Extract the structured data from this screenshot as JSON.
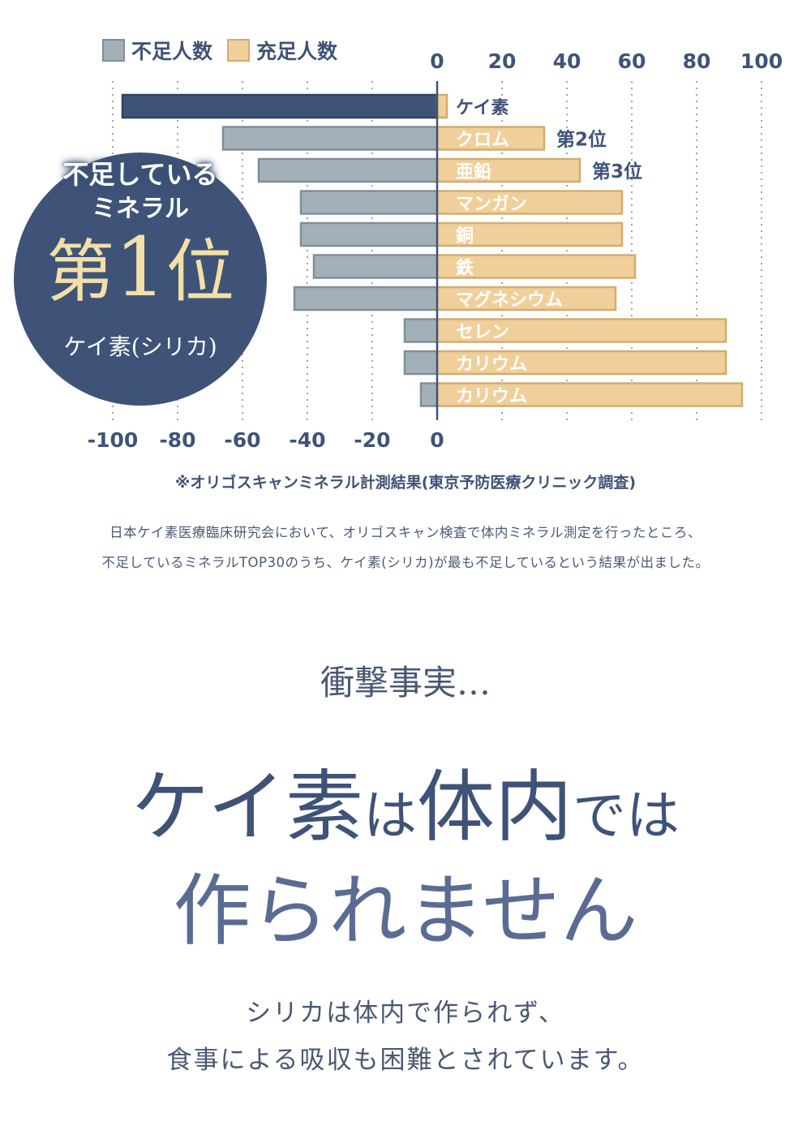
{
  "legend": {
    "shortage_label": "不足人数",
    "sufficient_label": "充足人数",
    "shortage_color": "#a3b0b8",
    "sufficient_color": "#f0cf9b"
  },
  "chart_data": {
    "type": "bar",
    "orientation": "horizontal-diverging",
    "categories": [
      "ケイ素",
      "クロム",
      "亜鉛",
      "マンガン",
      "銅",
      "鉄",
      "マグネシウム",
      "セレン",
      "カリウム",
      "カリウム"
    ],
    "series": [
      {
        "name": "不足人数",
        "values": [
          -97,
          -66,
          -55,
          -42,
          -42,
          -38,
          -44,
          -10,
          -10,
          -5
        ]
      },
      {
        "name": "充足人数",
        "values": [
          3,
          33,
          44,
          57,
          57,
          61,
          55,
          89,
          89,
          94
        ]
      }
    ],
    "rank_annotations": [
      {
        "category_index": 1,
        "text": "第2位"
      },
      {
        "category_index": 2,
        "text": "第3位"
      }
    ],
    "top_axis_ticks": [
      "0",
      "20",
      "40",
      "60",
      "80",
      "100"
    ],
    "bottom_axis_ticks": [
      "-100",
      "-80",
      "-60",
      "-40",
      "-20",
      "0"
    ],
    "xlim": [
      -100,
      100
    ],
    "grid": "vertical dotted",
    "highlight_color": "#3f5378",
    "shortage_color": "#a3b0b8",
    "sufficient_color": "#f0cf9b"
  },
  "badge": {
    "line1": "不足している",
    "line2": "ミネラル",
    "rank_prefix": "第",
    "rank_number": "1",
    "rank_suffix": "位",
    "mineral": "ケイ素(シリカ)"
  },
  "source_note": "※オリゴスキャンミネラル計測結果(東京予防医療クリニック調査)",
  "description": {
    "line1": "日本ケイ素医療臨床研究会において、オリゴスキャン検査で体内ミネラル測定を行ったところ、",
    "line2": "不足しているミネラルTOP30のうち、ケイ素(シリカ)が最も不足しているという結果が出ました。"
  },
  "shock_text": "衝撃事実…",
  "headline": {
    "part1": "ケイ素",
    "part2": "は",
    "part3": "体内",
    "part4": "では",
    "line2": "作られません"
  },
  "subtext": {
    "line1": "シリカは体内で作られず、",
    "line2": "食事による吸収も困難とされています。"
  }
}
